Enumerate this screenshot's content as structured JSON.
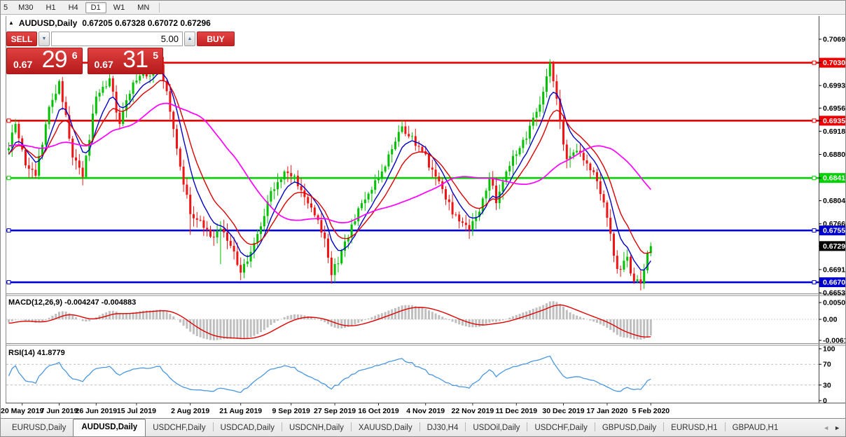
{
  "toolbar": {
    "timeframes": [
      {
        "label": "5",
        "active": false,
        "partial": true
      },
      {
        "label": "M30",
        "active": false
      },
      {
        "label": "H1",
        "active": false
      },
      {
        "label": "H4",
        "active": false
      },
      {
        "label": "D1",
        "active": true
      },
      {
        "label": "W1",
        "active": false
      },
      {
        "label": "MN",
        "active": false
      }
    ]
  },
  "chart_header": {
    "collapse_icon": "▲",
    "title": "AUDUSD,Daily",
    "ohlc": "0.67205 0.67328 0.67072 0.67296"
  },
  "trade_panel": {
    "sell_label": "SELL",
    "buy_label": "BUY",
    "volume": "5.00",
    "spinner_down_icon": "▼",
    "spinner_up_icon": "▲",
    "sell_price": {
      "prefix": "0.67",
      "big": "29",
      "sup": "6"
    },
    "buy_price": {
      "prefix": "0.67",
      "big": "31",
      "sup": "5"
    }
  },
  "colors": {
    "bull": "#00c100",
    "bear": "#f01414",
    "level_red": "#ee0000",
    "level_green": "#00d200",
    "level_blue": "#0000cd",
    "ma_fast": "#0000c8",
    "ma_mid": "#dd0000",
    "ma_slow": "#ff00ff",
    "macd_hist": "#bfbfbf",
    "macd_signal": "#e00000",
    "rsi_line": "#4a97df"
  },
  "chart_data": {
    "type": "candlestick",
    "symbol": "AUDUSD",
    "timeframe": "Daily",
    "visible_bars": 192,
    "ohlc_current": {
      "open": 0.67205,
      "high": 0.67328,
      "low": 0.67072,
      "close": 0.67296
    },
    "current_price": 0.67296,
    "price_axis_ticks": [
      0.7069,
      0.6993,
      0.6956,
      0.6918,
      0.688,
      0.6804,
      0.6766,
      0.6691,
      0.6653
    ],
    "levels": [
      {
        "price": 0.70304,
        "type": "resistance",
        "color": "red"
      },
      {
        "price": 0.69353,
        "type": "resistance",
        "color": "red"
      },
      {
        "price": 0.68413,
        "type": "support",
        "color": "green"
      },
      {
        "price": 0.67552,
        "type": "support",
        "color": "blue"
      },
      {
        "price": 0.66702,
        "type": "support",
        "color": "blue"
      }
    ],
    "pre_history_anchors": [
      [
        -40,
        0.694
      ],
      [
        -28,
        0.6888
      ],
      [
        -16,
        0.6928
      ],
      [
        -8,
        0.6858
      ]
    ],
    "close_path_anchors": [
      [
        0,
        0.689
      ],
      [
        2,
        0.693
      ],
      [
        5,
        0.6862
      ],
      [
        8,
        0.6845
      ],
      [
        12,
        0.6958
      ],
      [
        15,
        0.7
      ],
      [
        19,
        0.6875
      ],
      [
        22,
        0.6843
      ],
      [
        26,
        0.6975
      ],
      [
        30,
        0.7005
      ],
      [
        33,
        0.693
      ],
      [
        37,
        0.6998
      ],
      [
        41,
        0.7008
      ],
      [
        45,
        0.7028
      ],
      [
        48,
        0.695
      ],
      [
        51,
        0.686
      ],
      [
        54,
        0.6782
      ],
      [
        57,
        0.6772
      ],
      [
        60,
        0.6745
      ],
      [
        63,
        0.6758
      ],
      [
        66,
        0.673
      ],
      [
        69,
        0.6686
      ],
      [
        72,
        0.672
      ],
      [
        75,
        0.6762
      ],
      [
        78,
        0.682
      ],
      [
        82,
        0.6852
      ],
      [
        85,
        0.6845
      ],
      [
        88,
        0.681
      ],
      [
        91,
        0.678
      ],
      [
        94,
        0.6742
      ],
      [
        96,
        0.6682
      ],
      [
        99,
        0.6722
      ],
      [
        102,
        0.6765
      ],
      [
        106,
        0.6806
      ],
      [
        110,
        0.684
      ],
      [
        113,
        0.688
      ],
      [
        117,
        0.6926
      ],
      [
        120,
        0.691
      ],
      [
        123,
        0.6885
      ],
      [
        126,
        0.6855
      ],
      [
        130,
        0.6806
      ],
      [
        134,
        0.677
      ],
      [
        137,
        0.6756
      ],
      [
        140,
        0.6786
      ],
      [
        143,
        0.684
      ],
      [
        145,
        0.68
      ],
      [
        148,
        0.6852
      ],
      [
        151,
        0.688
      ],
      [
        154,
        0.6906
      ],
      [
        157,
        0.695
      ],
      [
        160,
        0.7008
      ],
      [
        161,
        0.703
      ],
      [
        162,
        0.7
      ],
      [
        164,
        0.6936
      ],
      [
        166,
        0.6872
      ],
      [
        169,
        0.6886
      ],
      [
        172,
        0.6865
      ],
      [
        175,
        0.6836
      ],
      [
        178,
        0.6776
      ],
      [
        181,
        0.6692
      ],
      [
        184,
        0.6712
      ],
      [
        186,
        0.6672
      ],
      [
        188,
        0.6668
      ],
      [
        190,
        0.6718
      ],
      [
        191,
        0.67296
      ]
    ],
    "wick_overrides": {
      "54": {
        "low": 0.6748
      },
      "63": {
        "low": 0.67
      },
      "96": {
        "low": 0.6668
      },
      "161": {
        "high": 0.7033
      },
      "188": {
        "low": 0.6661
      }
    },
    "moving_averages": [
      {
        "period": 7,
        "method": "ema",
        "color": "#0000c8",
        "name": "fast"
      },
      {
        "period": 13,
        "method": "ema",
        "color": "#dd0000",
        "name": "mid"
      },
      {
        "period": 34,
        "method": "sma",
        "color": "#ff00ff",
        "name": "slow"
      }
    ],
    "date_ticks": [
      {
        "bar": 4,
        "label": "20 May 2019"
      },
      {
        "bar": 15,
        "label": "7 Jun 2019"
      },
      {
        "bar": 26,
        "label": "26 Jun 2019"
      },
      {
        "bar": 38,
        "label": "15 Jul 2019"
      },
      {
        "bar": 54,
        "label": "2 Aug 2019"
      },
      {
        "bar": 69,
        "label": "21 Aug 2019"
      },
      {
        "bar": 84,
        "label": "9 Sep 2019"
      },
      {
        "bar": 97,
        "label": "27 Sep 2019"
      },
      {
        "bar": 110,
        "label": "16 Oct 2019"
      },
      {
        "bar": 124,
        "label": "4 Nov 2019"
      },
      {
        "bar": 138,
        "label": "22 Nov 2019"
      },
      {
        "bar": 151,
        "label": "11 Dec 2019"
      },
      {
        "bar": 165,
        "label": "30 Dec 2019"
      },
      {
        "bar": 178,
        "label": "17 Jan 2020"
      },
      {
        "bar": 191,
        "label": "5 Feb 2020"
      }
    ],
    "macd": {
      "label": "MACD(12,26,9) -0.004247 -0.004883",
      "params": [
        12,
        26,
        9
      ],
      "value": -0.004247,
      "signal_value": -0.004883,
      "axis_labels": [
        "0.005076",
        "0.00",
        "-0.006148"
      ]
    },
    "rsi": {
      "label": "RSI(14) 41.8779",
      "period": 14,
      "value": 41.8779,
      "axis_labels": [
        "100",
        "70",
        "30",
        "0"
      ],
      "levels": [
        70,
        30
      ]
    }
  },
  "tabs": {
    "items": [
      {
        "label": "EURUSD,Daily",
        "active": false
      },
      {
        "label": "AUDUSD,Daily",
        "active": true
      },
      {
        "label": "USDCHF,Daily",
        "active": false
      },
      {
        "label": "USDCAD,Daily",
        "active": false
      },
      {
        "label": "USDCNH,Daily",
        "active": false
      },
      {
        "label": "XAUUSD,Daily",
        "active": false
      },
      {
        "label": "DJ30,H4",
        "active": false
      },
      {
        "label": "USDOil,Daily",
        "active": false
      },
      {
        "label": "USDCHF,Daily",
        "active": false
      },
      {
        "label": "GBPUSD,Daily",
        "active": false
      },
      {
        "label": "EURUSD,H1",
        "active": false
      },
      {
        "label": "GBPAUD,H1",
        "active": false
      }
    ],
    "scroll_left_icon": "◄",
    "scroll_right_icon": "►"
  }
}
